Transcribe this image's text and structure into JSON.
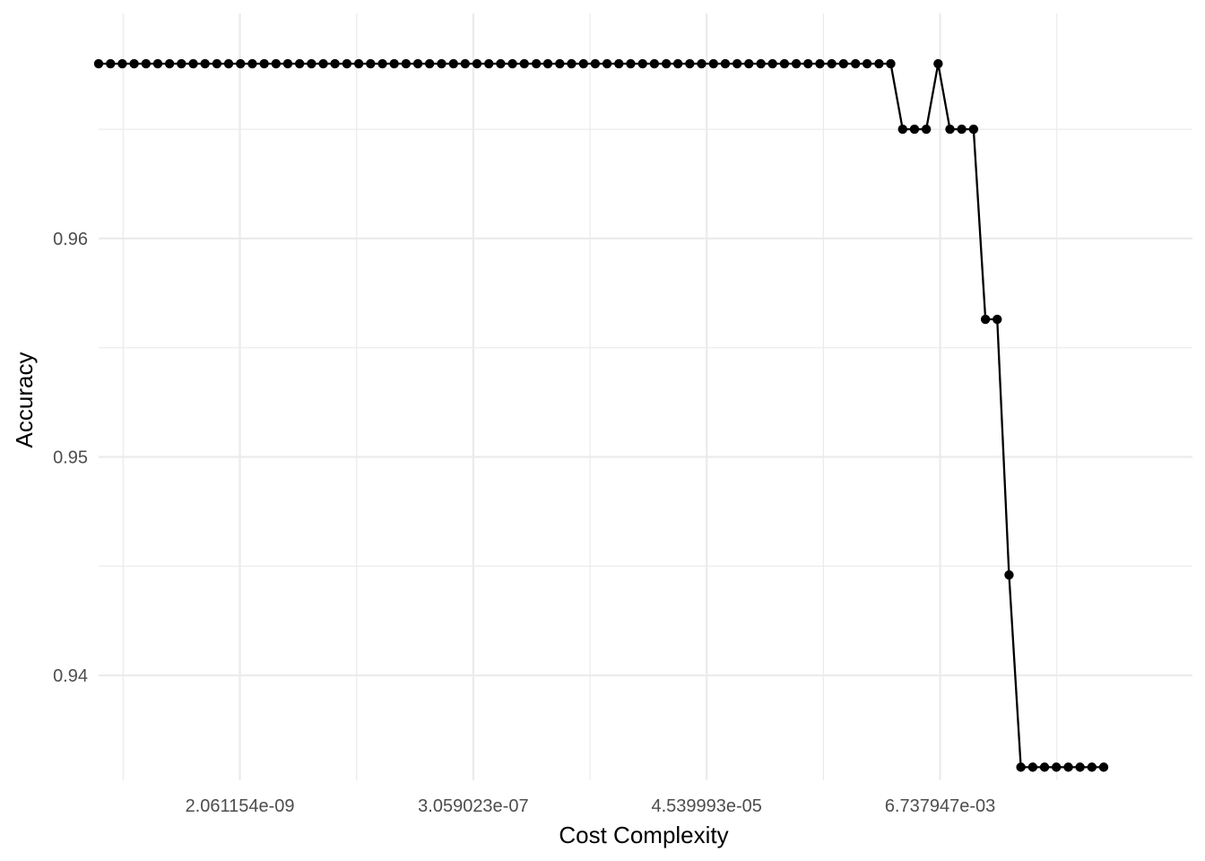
{
  "chart_data": {
    "type": "line",
    "title": "",
    "xlabel": "Cost Complexity",
    "ylabel": "Accuracy",
    "x_scale": "log10",
    "x_ticks": [
      {
        "value": 2.061154e-09,
        "label": "2.061154e-09"
      },
      {
        "value": 3.059023e-07,
        "label": "3.059023e-07"
      },
      {
        "value": 4.539993e-05,
        "label": "4.539993e-05"
      },
      {
        "value": 0.006737947,
        "label": "6.737947e-03"
      }
    ],
    "y_ticks": [
      {
        "value": 0.94,
        "label": "0.94"
      },
      {
        "value": 0.95,
        "label": "0.95"
      },
      {
        "value": 0.96,
        "label": "0.96"
      }
    ],
    "xlim": [
      1e-10,
      1.5
    ],
    "ylim": [
      0.9352,
      0.9703
    ],
    "grid": true,
    "legend": "none",
    "colors": {
      "line": "#000000",
      "point": "#000000",
      "grid": "#ebebeb",
      "background": "#ffffff"
    },
    "series": [
      {
        "x": [
          1e-10,
          1.29e-10,
          1.66e-10,
          2.14e-10,
          2.76e-10,
          3.55e-10,
          4.57e-10,
          5.89e-10,
          7.59e-10,
          9.77e-10,
          1.26e-09,
          1.62e-09,
          2.09e-09,
          2.69e-09,
          3.47e-09,
          4.47e-09,
          5.75e-09,
          7.41e-09,
          9.55e-09,
          1.23e-08,
          1.58e-08,
          2.04e-08,
          2.63e-08,
          3.39e-08,
          4.37e-08,
          5.62e-08,
          7.24e-08,
          9.33e-08,
          1.2e-07,
          1.55e-07,
          2e-07,
          2.57e-07,
          3.31e-07,
          4.27e-07,
          5.5e-07,
          7.08e-07,
          9.12e-07,
          1.18e-06,
          1.51e-06,
          1.95e-06,
          2.51e-06,
          3.24e-06,
          4.17e-06,
          5.37e-06,
          6.92e-06,
          8.91e-06,
          1.15e-05,
          1.48e-05,
          1.91e-05,
          2.45e-05,
          3.16e-05,
          4.07e-05,
          5.25e-05,
          6.76e-05,
          8.71e-05,
          0.000112,
          0.000145,
          0.000186,
          0.00024,
          0.000309,
          0.000398,
          0.000513,
          0.000661,
          0.000851,
          0.0011,
          0.00141,
          0.00182,
          0.00234,
          0.00302,
          0.00389,
          0.00501,
          0.00646,
          0.00832,
          0.0107,
          0.0138,
          0.0178,
          0.0229,
          0.0295,
          0.038,
          0.049,
          0.0631,
          0.0813,
          0.105,
          0.135,
          0.174,
          0.224
        ],
        "y": [
          0.968,
          0.968,
          0.968,
          0.968,
          0.968,
          0.968,
          0.968,
          0.968,
          0.968,
          0.968,
          0.968,
          0.968,
          0.968,
          0.968,
          0.968,
          0.968,
          0.968,
          0.968,
          0.968,
          0.968,
          0.968,
          0.968,
          0.968,
          0.968,
          0.968,
          0.968,
          0.968,
          0.968,
          0.968,
          0.968,
          0.968,
          0.968,
          0.968,
          0.968,
          0.968,
          0.968,
          0.968,
          0.968,
          0.968,
          0.968,
          0.968,
          0.968,
          0.968,
          0.968,
          0.968,
          0.968,
          0.968,
          0.968,
          0.968,
          0.968,
          0.968,
          0.968,
          0.968,
          0.968,
          0.968,
          0.968,
          0.968,
          0.968,
          0.968,
          0.968,
          0.968,
          0.968,
          0.968,
          0.968,
          0.968,
          0.968,
          0.968,
          0.968,
          0.965,
          0.965,
          0.965,
          0.968,
          0.965,
          0.965,
          0.965,
          0.9563,
          0.9563,
          0.9446,
          0.9358,
          0.9358,
          0.9358,
          0.9358,
          0.9358,
          0.9358,
          0.9358,
          0.9358
        ]
      }
    ]
  }
}
